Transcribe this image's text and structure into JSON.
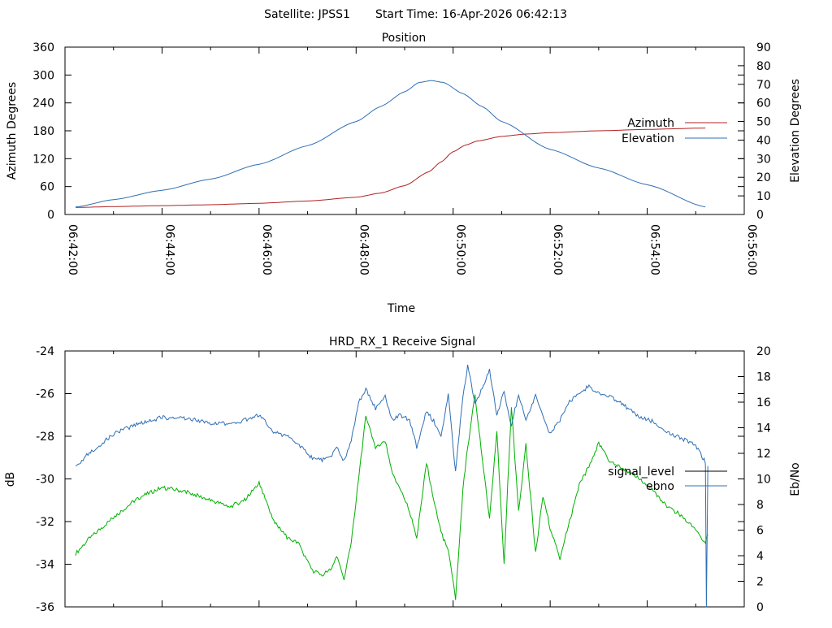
{
  "header": {
    "satellite_label": "Satellite: JPSS1",
    "start_time_label": "Start Time: 16-Apr-2026 06:42:13"
  },
  "colors": {
    "azimuth": "#b22222",
    "elevation": "#2f6fb5",
    "signal_level": "#00b000",
    "ebno": "#2f6fb5",
    "legend_signal_level": "#000000"
  },
  "chart_data": [
    {
      "type": "line",
      "title": "Position",
      "xlabel": "Time",
      "ylabel": "Azimuth Degrees",
      "y2label": "Elevation Degrees",
      "x_tick_labels": [
        "06:42:00",
        "06:44:00",
        "06:46:00",
        "06:48:00",
        "06:50:00",
        "06:52:00",
        "06:54:00",
        "06:56:00"
      ],
      "xlim_minutes": [
        0,
        14
      ],
      "ylim": [
        0,
        360
      ],
      "y_ticks": [
        0,
        60,
        120,
        180,
        240,
        300,
        360
      ],
      "y2lim": [
        0,
        90
      ],
      "y2_ticks": [
        0,
        10,
        20,
        30,
        40,
        50,
        60,
        70,
        80,
        90
      ],
      "legend": [
        "Azimuth",
        "Elevation"
      ],
      "legend_position": "right",
      "series": [
        {
          "name": "Azimuth",
          "axis": "y",
          "x": [
            0.22,
            1,
            2,
            3,
            4,
            5,
            6,
            6.5,
            7,
            7.5,
            7.75,
            8,
            8.25,
            8.5,
            9,
            9.5,
            10,
            11,
            12,
            13.2
          ],
          "values": [
            15,
            17,
            19,
            21,
            24,
            29,
            37,
            46,
            62,
            92,
            113,
            135,
            149,
            158,
            168,
            173,
            176,
            180,
            183,
            186
          ]
        },
        {
          "name": "Elevation",
          "axis": "y2",
          "x": [
            0.22,
            1,
            2,
            3,
            4,
            5,
            6,
            6.5,
            7,
            7.3,
            7.55,
            7.8,
            8.2,
            8.6,
            9,
            10,
            11,
            12,
            13.2
          ],
          "values": [
            4,
            8,
            13,
            19,
            27,
            37,
            50,
            58,
            66,
            71,
            72,
            71,
            65,
            58,
            50,
            35,
            25,
            16,
            4
          ]
        }
      ]
    },
    {
      "type": "line",
      "title": "HRD_RX_1 Receive Signal",
      "ylabel": "dB",
      "y2label": "Eb/No",
      "xlim_minutes": [
        0,
        14
      ],
      "ylim": [
        -36,
        -24
      ],
      "y_ticks": [
        -36,
        -34,
        -32,
        -30,
        -28,
        -26,
        -24
      ],
      "y2lim": [
        0,
        20
      ],
      "y2_ticks": [
        0,
        2,
        4,
        6,
        8,
        10,
        12,
        14,
        16,
        18,
        20
      ],
      "legend": [
        "signal_level",
        "ebno"
      ],
      "legend_position": "right",
      "series": [
        {
          "name": "signal_level",
          "axis": "y",
          "x": [
            0.22,
            0.5,
            1.0,
            1.5,
            2.0,
            2.5,
            3.0,
            3.4,
            3.7,
            4.0,
            4.3,
            4.6,
            4.8,
            5.1,
            5.3,
            5.5,
            5.6,
            5.75,
            5.9,
            6.05,
            6.2,
            6.4,
            6.6,
            6.75,
            6.9,
            7.1,
            7.25,
            7.45,
            7.6,
            7.75,
            7.9,
            8.05,
            8.2,
            8.3,
            8.45,
            8.6,
            8.75,
            8.9,
            9.05,
            9.2,
            9.35,
            9.5,
            9.7,
            9.85,
            10.0,
            10.2,
            10.4,
            10.6,
            10.8,
            11.0,
            11.2,
            11.5,
            11.8,
            12.1,
            12.4,
            12.7,
            13.0,
            13.2,
            13.25
          ],
          "values": [
            -33.5,
            -32.8,
            -31.8,
            -30.9,
            -30.4,
            -30.6,
            -31.0,
            -31.3,
            -31.0,
            -30.2,
            -32.0,
            -32.8,
            -33.0,
            -34.3,
            -34.5,
            -34.2,
            -33.6,
            -34.8,
            -33.0,
            -30.0,
            -27.1,
            -28.5,
            -28.2,
            -29.8,
            -30.4,
            -31.5,
            -32.8,
            -29.2,
            -31.0,
            -32.5,
            -33.4,
            -35.6,
            -30.5,
            -28.5,
            -26.1,
            -29.0,
            -31.9,
            -27.8,
            -34.0,
            -26.6,
            -31.5,
            -28.4,
            -33.5,
            -30.8,
            -32.3,
            -33.7,
            -32.0,
            -30.3,
            -29.4,
            -28.3,
            -29.1,
            -29.5,
            -29.9,
            -30.5,
            -31.3,
            -31.7,
            -32.4,
            -33.0,
            -32.6
          ]
        },
        {
          "name": "ebno",
          "axis": "y2",
          "x": [
            0.22,
            0.5,
            1.0,
            1.5,
            2.0,
            2.5,
            3.0,
            3.4,
            3.7,
            4.0,
            4.3,
            4.6,
            4.8,
            5.1,
            5.3,
            5.5,
            5.6,
            5.75,
            5.9,
            6.05,
            6.2,
            6.4,
            6.6,
            6.75,
            6.9,
            7.1,
            7.25,
            7.45,
            7.6,
            7.75,
            7.9,
            8.05,
            8.2,
            8.3,
            8.45,
            8.6,
            8.75,
            8.9,
            9.05,
            9.2,
            9.35,
            9.5,
            9.7,
            9.85,
            10.0,
            10.2,
            10.4,
            10.6,
            10.8,
            11.0,
            11.2,
            11.5,
            11.8,
            12.1,
            12.4,
            12.7,
            13.0,
            13.2,
            13.22,
            13.25
          ],
          "values": [
            11.0,
            12.0,
            13.5,
            14.3,
            14.8,
            14.7,
            14.4,
            14.3,
            14.6,
            15.0,
            13.7,
            13.3,
            12.8,
            11.6,
            11.5,
            11.8,
            12.6,
            11.4,
            13.0,
            16.0,
            17.0,
            15.5,
            16.4,
            14.6,
            15.0,
            14.6,
            12.5,
            15.3,
            14.5,
            13.4,
            16.6,
            10.5,
            16.5,
            18.8,
            16.0,
            17.0,
            18.5,
            15.0,
            16.8,
            14.2,
            16.6,
            14.6,
            16.5,
            15.0,
            13.5,
            14.6,
            16.0,
            16.8,
            17.2,
            16.7,
            16.5,
            15.8,
            14.9,
            14.5,
            13.7,
            13.2,
            12.6,
            11.3,
            0.0,
            11.0
          ]
        }
      ]
    }
  ]
}
